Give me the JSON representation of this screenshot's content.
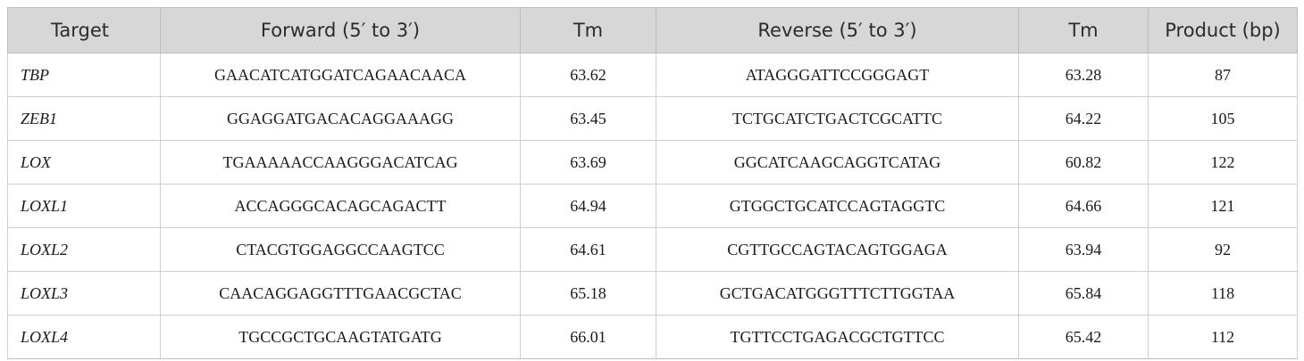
{
  "table": {
    "headers": [
      "Target",
      "Forward (5′ to 3′)",
      "Tm",
      "Reverse (5′ to 3′)",
      "Tm",
      "Product (bp)"
    ],
    "rows": [
      {
        "target": "TBP",
        "forward": "GAACATCATGGATCAGAACAACA",
        "tm_f": "63.62",
        "reverse": "ATAGGGATTCCGGGAGT",
        "tm_r": "63.28",
        "product": "87"
      },
      {
        "target": "ZEB1",
        "forward": "GGAGGATGACACAGGAAAGG",
        "tm_f": "63.45",
        "reverse": "TCTGCATCTGACTCGCATTC",
        "tm_r": "64.22",
        "product": "105"
      },
      {
        "target": "LOX",
        "forward": "TGAAAAACCAAGGGACATCAG",
        "tm_f": "63.69",
        "reverse": "GGCATCAAGCAGGTCATAG",
        "tm_r": "60.82",
        "product": "122"
      },
      {
        "target": "LOXL1",
        "forward": "ACCAGGGCACAGCAGACTT",
        "tm_f": "64.94",
        "reverse": "GTGGCTGCATCCAGTAGGTC",
        "tm_r": "64.66",
        "product": "121"
      },
      {
        "target": "LOXL2",
        "forward": "CTACGTGGAGGCCAAGTCC",
        "tm_f": "64.61",
        "reverse": "CGTTGCCAGTACAGTGGAGA",
        "tm_r": "63.94",
        "product": "92"
      },
      {
        "target": "LOXL3",
        "forward": "CAACAGGAGGTTTGAACGCTAC",
        "tm_f": "65.18",
        "reverse": "GCTGACATGGGTTTCTTGGTAA",
        "tm_r": "65.84",
        "product": "118"
      },
      {
        "target": "LOXL4",
        "forward": "TGCCGCTGCAAGTATGATG",
        "tm_f": "66.01",
        "reverse": "TGTTCCTGAGACGCTGTTCC",
        "tm_r": "65.42",
        "product": "112"
      }
    ]
  }
}
